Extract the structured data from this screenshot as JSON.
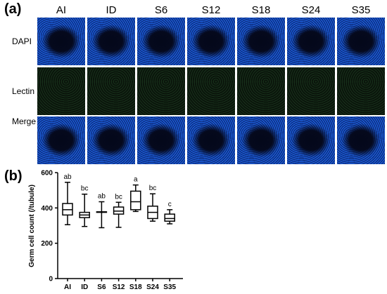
{
  "panel_a": {
    "label": "(a)",
    "columns": [
      "AI",
      "ID",
      "S6",
      "S12",
      "S18",
      "S24",
      "S35"
    ],
    "rows": [
      "DAPI",
      "Lectin",
      "Merge"
    ]
  },
  "panel_b": {
    "label": "(b)"
  },
  "chart_data": {
    "type": "box",
    "categories": [
      "AI",
      "ID",
      "S6",
      "S12",
      "S18",
      "S24",
      "S35"
    ],
    "ylabel": "Germ cell count (/tubule)",
    "ylim": [
      0,
      600
    ],
    "yticks": [
      0,
      200,
      400,
      600
    ],
    "boxes": [
      {
        "min": 305,
        "q1": 360,
        "median": 390,
        "q3": 425,
        "max": 545,
        "letter": "ab"
      },
      {
        "min": 295,
        "q1": 345,
        "median": 360,
        "q3": 375,
        "max": 478,
        "letter": "bc"
      },
      {
        "min": 288,
        "q1": 375,
        "median": 377,
        "q3": 378,
        "max": 435,
        "letter": "ab"
      },
      {
        "min": 290,
        "q1": 365,
        "median": 382,
        "q3": 405,
        "max": 432,
        "letter": "bc"
      },
      {
        "min": 380,
        "q1": 390,
        "median": 435,
        "q3": 495,
        "max": 530,
        "letter": "a"
      },
      {
        "min": 325,
        "q1": 340,
        "median": 375,
        "q3": 410,
        "max": 480,
        "letter": "bc"
      },
      {
        "min": 310,
        "q1": 325,
        "median": 340,
        "q3": 365,
        "max": 390,
        "letter": "c"
      }
    ]
  }
}
